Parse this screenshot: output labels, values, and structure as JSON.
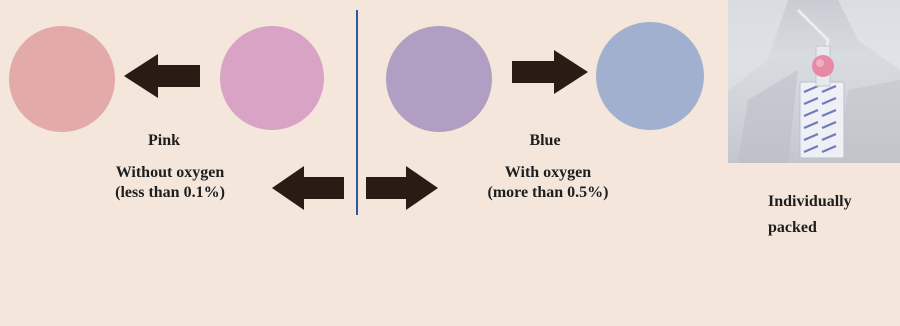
{
  "colors": {
    "background": "#f4e6db",
    "pink_result": "#e2aaa8",
    "pink_source": "#d8a3c5",
    "blue_source": "#b09fc2",
    "blue_result": "#a0b0ce",
    "arrow": "#2a1b14",
    "divider": "#2b5c9a",
    "indicator_dot": "#e88aa6"
  },
  "left": {
    "color_label": "Pink",
    "condition_line1": "Without oxygen",
    "condition_line2": "(less than 0.1%)"
  },
  "right": {
    "color_label": "Blue",
    "condition_line1": "With oxygen",
    "condition_line2": "(more than 0.5%)"
  },
  "photo": {
    "caption_line1": "Individually",
    "caption_line2": "packed"
  }
}
